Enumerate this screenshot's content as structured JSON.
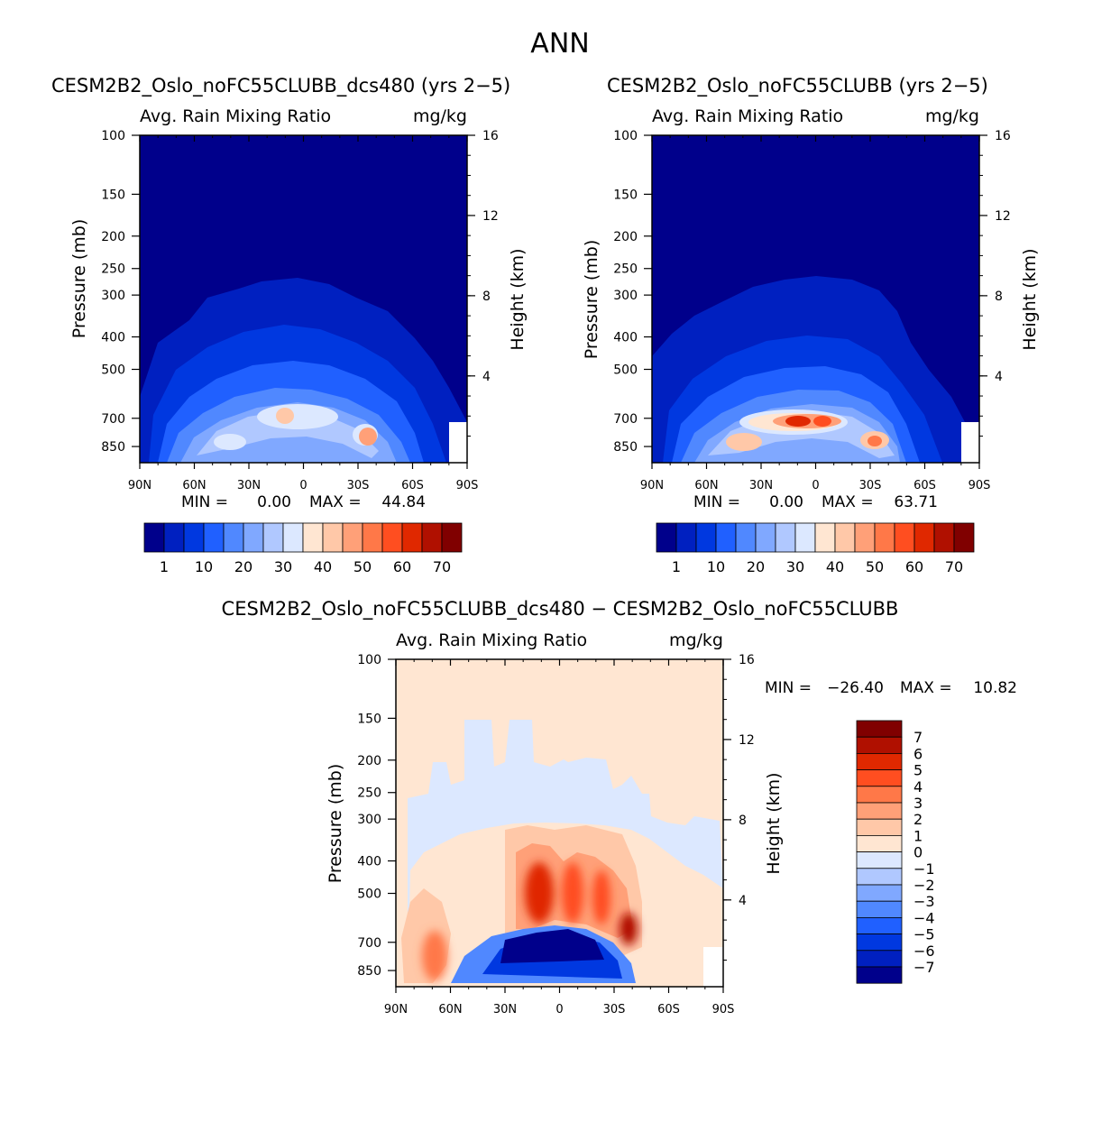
{
  "figure_title": "ANN",
  "chart_data": [
    {
      "type": "heatmap",
      "id": "p1",
      "title": "CESM2B2_Oslo_noFC55CLUBB_dcs480 (yrs 2−5)",
      "variable": "Avg. Rain Mixing Ratio",
      "units": "mg/kg",
      "ylabel": "Pressure (mb)",
      "ylabel2": "Height (km)",
      "xticks": [
        "90N",
        "60N",
        "30N",
        "0",
        "30S",
        "60S",
        "90S"
      ],
      "yticks": [
        "100",
        "150",
        "200",
        "250",
        "300",
        "400",
        "500",
        "700",
        "850"
      ],
      "y2ticks": [
        "16",
        "12",
        "8",
        "4"
      ],
      "stats": {
        "min_label": "MIN =",
        "min": "0.00",
        "max_label": "MAX =",
        "max": "44.84"
      },
      "colorbar_labels": [
        "1",
        "10",
        "20",
        "30",
        "40",
        "50",
        "60",
        "70"
      ],
      "colors": [
        "#00008b",
        "#0020c0",
        "#0038e0",
        "#2060ff",
        "#5088ff",
        "#80a8ff",
        "#b0c8ff",
        "#dce8ff",
        "#ffe6d2",
        "#ffc8a8",
        "#ffa078",
        "#ff7848",
        "#ff4e20",
        "#e02800",
        "#b01000",
        "#800000"
      ],
      "max_value": 44.84,
      "hotspots": [
        {
          "lat": -10,
          "p": 700,
          "value": 44.84
        },
        {
          "lat": 35,
          "p": 800,
          "value": 42
        }
      ]
    },
    {
      "type": "heatmap",
      "id": "p2",
      "title": "CESM2B2_Oslo_noFC55CLUBB (yrs 2−5)",
      "variable": "Avg. Rain Mixing Ratio",
      "units": "mg/kg",
      "ylabel": "Pressure (mb)",
      "ylabel2": "Height (km)",
      "xticks": [
        "90N",
        "60N",
        "30N",
        "0",
        "30S",
        "60S",
        "90S"
      ],
      "yticks": [
        "100",
        "150",
        "200",
        "250",
        "300",
        "400",
        "500",
        "700",
        "850"
      ],
      "y2ticks": [
        "16",
        "12",
        "8",
        "4"
      ],
      "stats": {
        "min_label": "MIN =",
        "min": "0.00",
        "max_label": "MAX =",
        "max": "63.71"
      },
      "colorbar_labels": [
        "1",
        "10",
        "20",
        "30",
        "40",
        "50",
        "60",
        "70"
      ],
      "colors": [
        "#00008b",
        "#0020c0",
        "#0038e0",
        "#2060ff",
        "#5088ff",
        "#80a8ff",
        "#b0c8ff",
        "#dce8ff",
        "#ffe6d2",
        "#ffc8a8",
        "#ffa078",
        "#ff7848",
        "#ff4e20",
        "#e02800",
        "#b01000",
        "#800000"
      ],
      "max_value": 63.71,
      "hotspots": [
        {
          "lat": -10,
          "p": 700,
          "value": 63.71
        },
        {
          "lat": 5,
          "p": 700,
          "value": 58
        },
        {
          "lat": 30,
          "p": 800,
          "value": 45
        }
      ]
    },
    {
      "type": "heatmap",
      "id": "p3",
      "title": "CESM2B2_Oslo_noFC55CLUBB_dcs480 − CESM2B2_Oslo_noFC55CLUBB",
      "variable": "Avg. Rain Mixing Ratio",
      "units": "mg/kg",
      "ylabel": "Pressure (mb)",
      "ylabel2": "Height (km)",
      "xticks": [
        "90N",
        "60N",
        "30N",
        "0",
        "30S",
        "60S",
        "90S"
      ],
      "yticks": [
        "100",
        "150",
        "200",
        "250",
        "300",
        "400",
        "500",
        "700",
        "850"
      ],
      "y2ticks": [
        "16",
        "12",
        "8",
        "4"
      ],
      "stats": {
        "min_label": "MIN =",
        "min": "−26.40",
        "max_label": "MAX =",
        "max": "10.82"
      },
      "colorbar_labels": [
        "7",
        "6",
        "5",
        "4",
        "3",
        "2",
        "1",
        "0",
        "−1",
        "−2",
        "−3",
        "−4",
        "−5",
        "−6",
        "−7"
      ],
      "colors": [
        "#800000",
        "#b01000",
        "#e02800",
        "#ff4e20",
        "#ff7848",
        "#ffa078",
        "#ffc8a8",
        "#ffe6d2",
        "#dce8ff",
        "#b0c8ff",
        "#80a8ff",
        "#5088ff",
        "#2060ff",
        "#0038e0",
        "#0020c0",
        "#00008b"
      ],
      "min_value": -26.4,
      "max_value": 10.82
    }
  ]
}
